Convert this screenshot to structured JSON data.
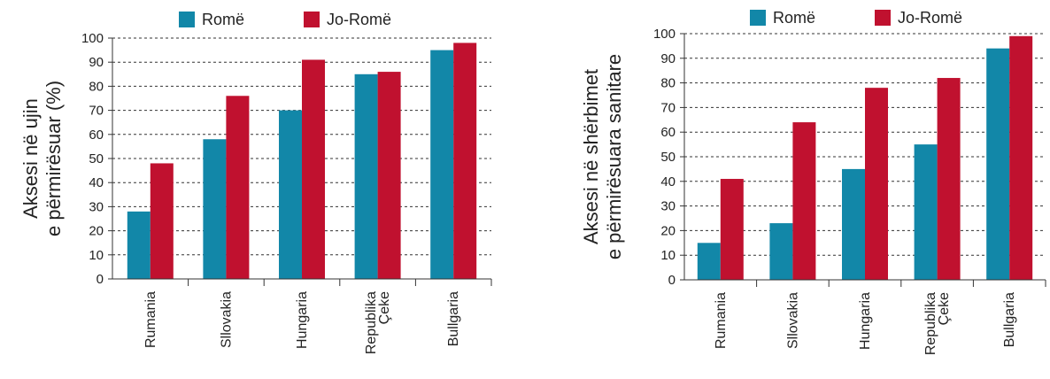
{
  "chart_data": [
    {
      "type": "bar",
      "ylabel_lines": [
        "Aksesi në ujin",
        "e përmirësuar (%)"
      ],
      "categories": [
        [
          "Rumania"
        ],
        [
          "Sllovakia"
        ],
        [
          "Hungaria"
        ],
        [
          "Republika",
          "Çeke"
        ],
        [
          "Bullgaria"
        ]
      ],
      "series": [
        {
          "name": "Romë",
          "color": "#1287a8",
          "values": [
            28,
            58,
            70,
            85,
            95
          ]
        },
        {
          "name": "Jo-Romë",
          "color": "#c0112f",
          "values": [
            48,
            76,
            91,
            86,
            98
          ]
        }
      ],
      "ylim": [
        0,
        100
      ],
      "yticks": [
        0,
        10,
        20,
        30,
        40,
        50,
        60,
        70,
        80,
        90,
        100
      ],
      "grid": "dashed-horizontal",
      "legend": "top"
    },
    {
      "type": "bar",
      "ylabel_lines": [
        "Aksesi në shërbimet",
        "e përmirësuara sanitare"
      ],
      "categories": [
        [
          "Rumania"
        ],
        [
          "Sllovakia"
        ],
        [
          "Hungaria"
        ],
        [
          "Republika",
          "Çeke"
        ],
        [
          "Bullgaria"
        ]
      ],
      "series": [
        {
          "name": "Romë",
          "color": "#1287a8",
          "values": [
            15,
            23,
            45,
            55,
            94
          ]
        },
        {
          "name": "Jo-Romë",
          "color": "#c0112f",
          "values": [
            41,
            64,
            78,
            82,
            99
          ]
        }
      ],
      "ylim": [
        0,
        100
      ],
      "yticks": [
        0,
        10,
        20,
        30,
        40,
        50,
        60,
        70,
        80,
        90,
        100
      ],
      "grid": "dashed-horizontal",
      "legend": "top"
    }
  ]
}
